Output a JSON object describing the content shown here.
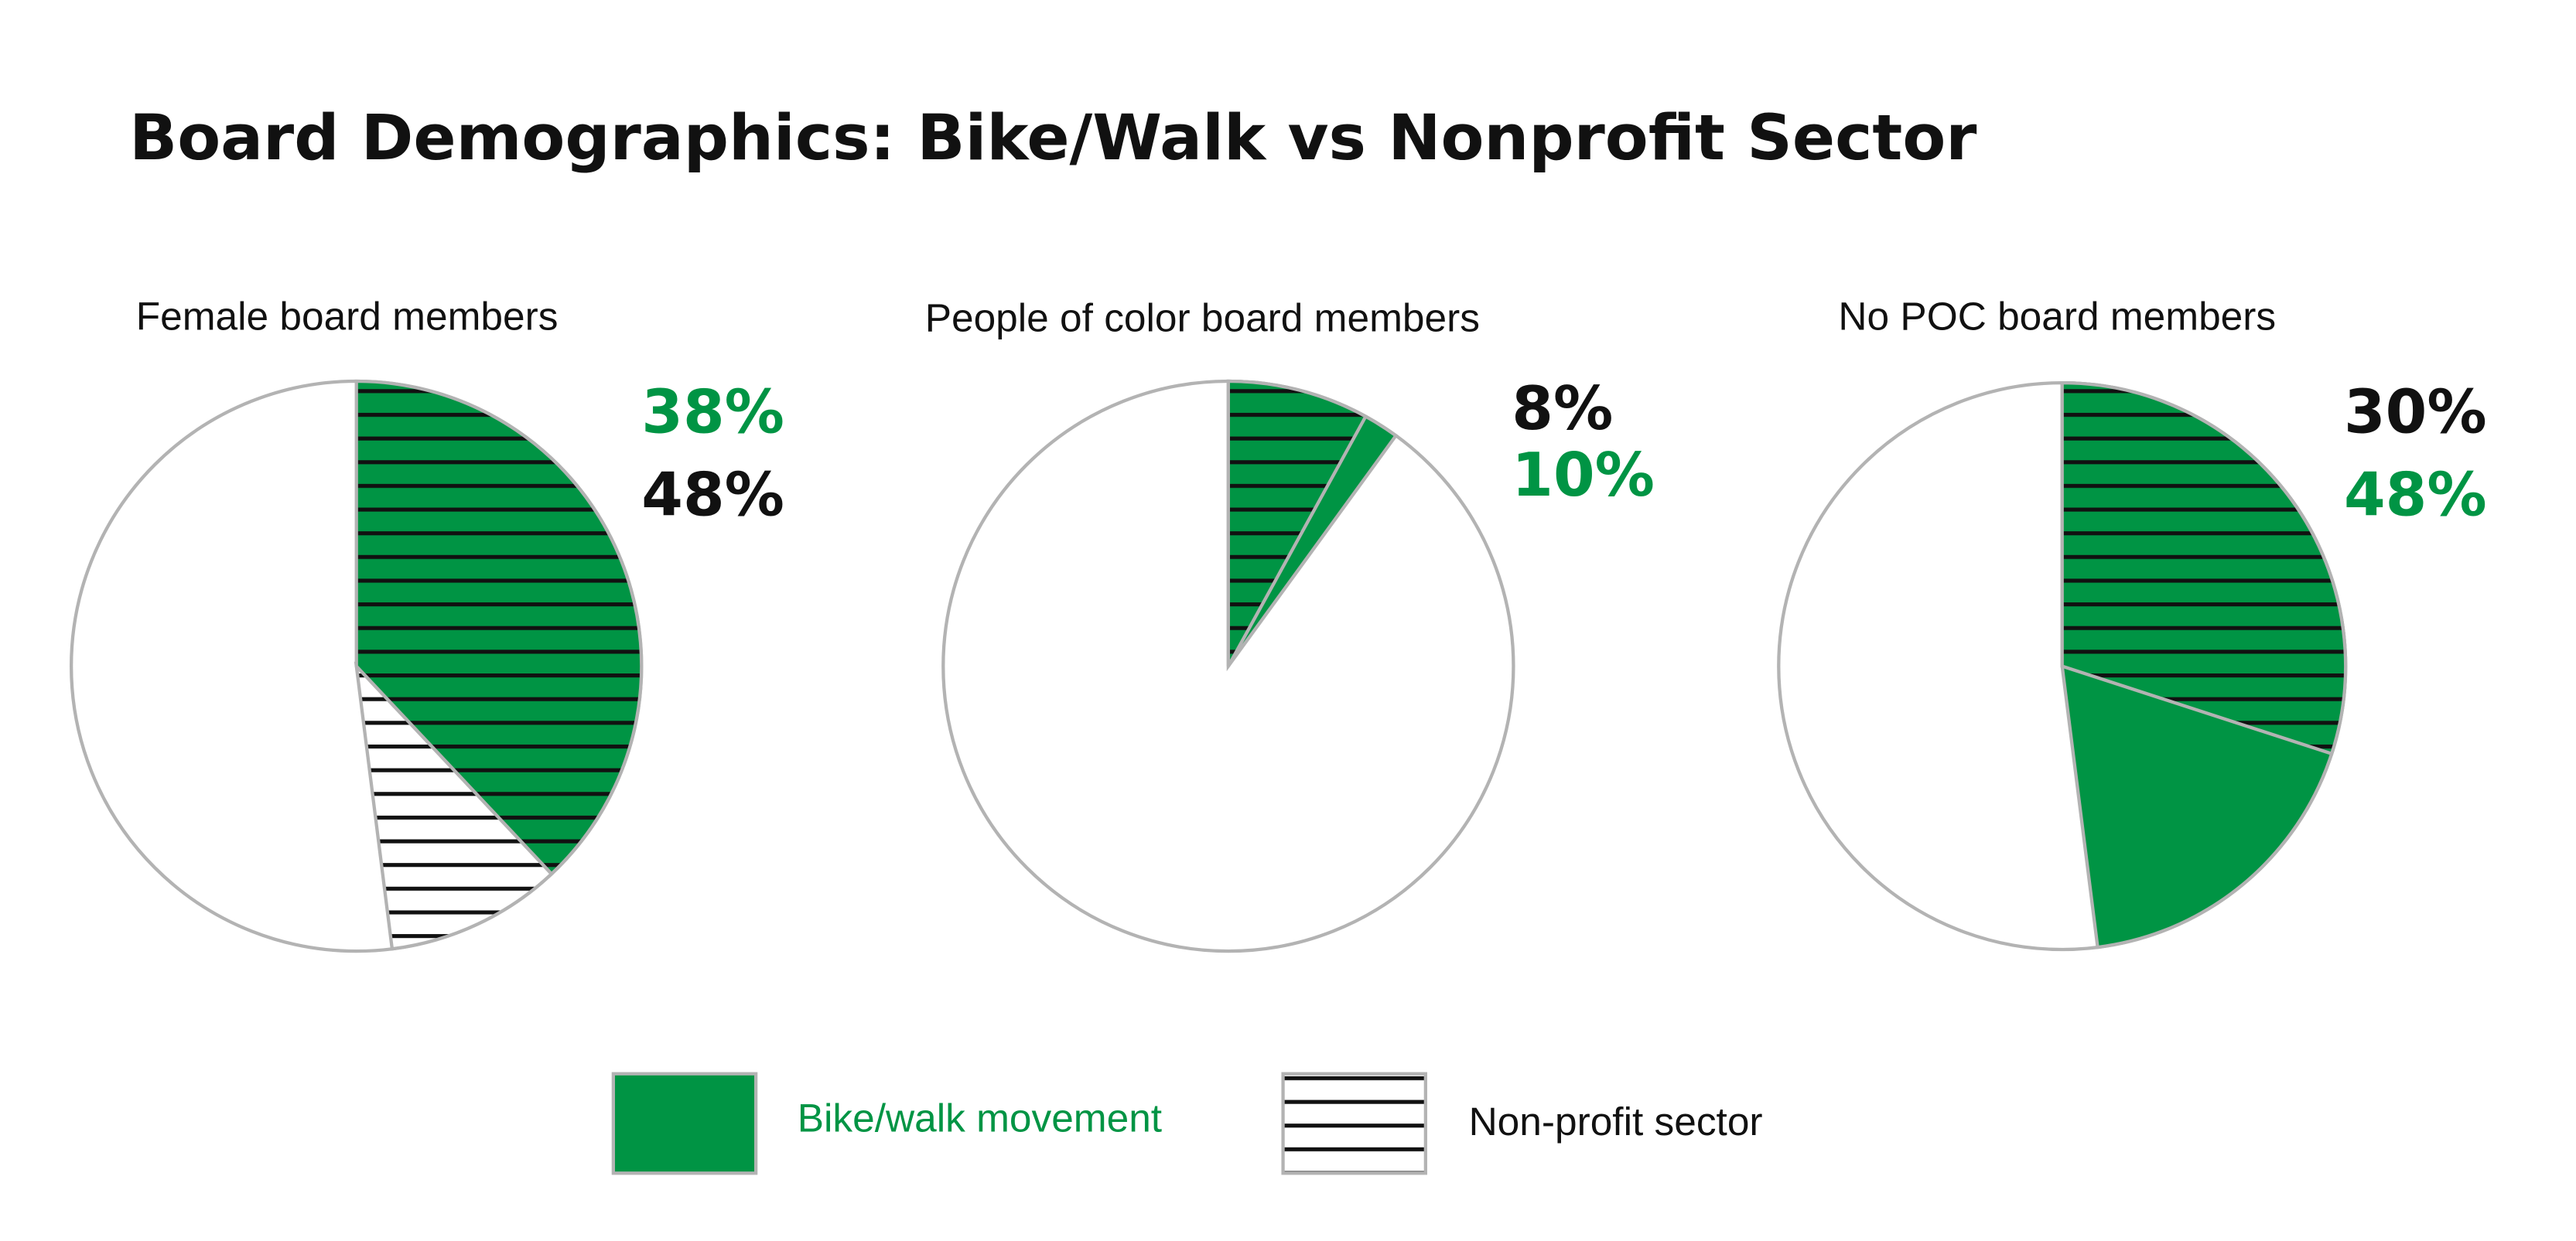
{
  "title": "Board Demographics: Bike/Walk vs Nonprofit Sector",
  "colors": {
    "bike_walk": "#009444",
    "nonprofit": "#ffffff",
    "stripe": "#111111",
    "outline": "#b3b3b3",
    "text": "#111111"
  },
  "legend": {
    "position": "bottom",
    "items": [
      {
        "label": "Bike/walk movement",
        "color": "#009444",
        "pattern": "solid"
      },
      {
        "label": "Non-profit sector",
        "color": "#ffffff",
        "pattern": "horizontal-stripes"
      }
    ]
  },
  "chart_data": [
    {
      "type": "pie",
      "title": "Female board members",
      "series": [
        {
          "name": "Bike/walk movement",
          "value": 38,
          "label": "38%",
          "label_color": "#009444"
        },
        {
          "name": "Non-profit sector",
          "value": 48,
          "label": "48%",
          "label_color": "#111111"
        }
      ]
    },
    {
      "type": "pie",
      "title": "People of color board members",
      "series": [
        {
          "name": "Non-profit sector",
          "value": 8,
          "label": "8%",
          "label_color": "#111111"
        },
        {
          "name": "Bike/walk movement",
          "value": 10,
          "label": "10%",
          "label_color": "#009444"
        }
      ]
    },
    {
      "type": "pie",
      "title": "No POC board members",
      "series": [
        {
          "name": "Non-profit sector",
          "value": 30,
          "label": "30%",
          "label_color": "#111111"
        },
        {
          "name": "Bike/walk movement",
          "value": 48,
          "label": "48%",
          "label_color": "#009444"
        }
      ]
    }
  ]
}
